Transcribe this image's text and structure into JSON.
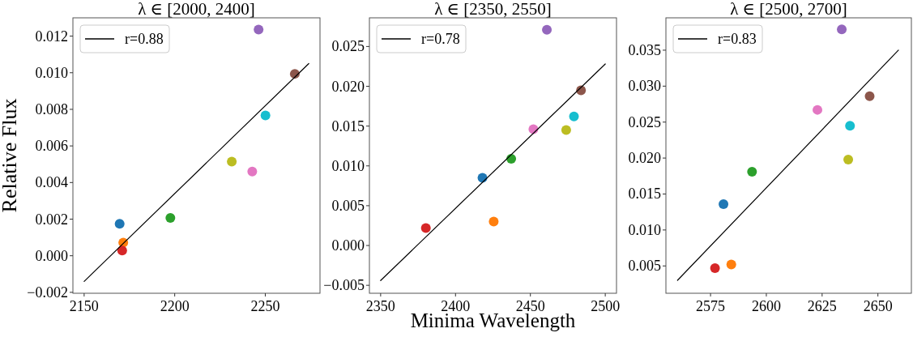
{
  "chart_data": [
    {
      "type": "scatter",
      "title": "λ ∈ [2000, 2400]",
      "ylabel": "Relative Flux",
      "xlim": [
        2143.8,
        2280.2
      ],
      "ylim": [
        -0.00205,
        0.013
      ],
      "xticks": [
        2150,
        2200,
        2250
      ],
      "yticks": [
        {
          "value": -0.002,
          "label": "−0.002"
        },
        {
          "value": 0,
          "label": "0.000"
        },
        {
          "value": 0.002,
          "label": "0.002"
        },
        {
          "value": 0.004,
          "label": "0.004"
        },
        {
          "value": 0.006,
          "label": "0.006"
        },
        {
          "value": 0.008,
          "label": "0.008"
        },
        {
          "value": 0.01,
          "label": "0.010"
        },
        {
          "value": 0.012,
          "label": "0.012"
        }
      ],
      "legend": "top left",
      "series": [
        {
          "marker": "circle",
          "x": [
            2169.6,
            2171.6,
            2197.6,
            2171.0,
            2246.3,
            2266.3,
            2242.8,
            2231.5,
            2250.1
          ],
          "values": [
            0.00175,
            0.00072,
            0.00207,
            0.00029,
            0.01236,
            0.00994,
            0.0046,
            0.00514,
            0.00767
          ],
          "colors": [
            "#1f77b4",
            "#ff7f0e",
            "#2ca02c",
            "#d62728",
            "#9467bd",
            "#8c564b",
            "#e377c2",
            "#bcbd22",
            "#17becf"
          ]
        },
        {
          "type": "line",
          "name": "r=0.88",
          "color": "#000000",
          "x": [
            2150,
            2274
          ],
          "values": [
            -0.0014,
            0.0105
          ]
        }
      ]
    },
    {
      "type": "scatter",
      "title": "λ ∈ [2350, 2550]",
      "xlabel": "Minima Wavelength",
      "xlim": [
        2342.5,
        2507.5
      ],
      "ylim": [
        -0.006,
        0.0286
      ],
      "xticks": [
        2350,
        2400,
        2450,
        2500
      ],
      "yticks": [
        {
          "value": -0.005,
          "label": "−0.005"
        },
        {
          "value": 0,
          "label": "0.000"
        },
        {
          "value": 0.005,
          "label": "0.005"
        },
        {
          "value": 0.01,
          "label": "0.010"
        },
        {
          "value": 0.015,
          "label": "0.015"
        },
        {
          "value": 0.02,
          "label": "0.020"
        },
        {
          "value": 0.025,
          "label": "0.025"
        }
      ],
      "legend": "top left",
      "series": [
        {
          "marker": "circle",
          "x": [
            2418.0,
            2425.5,
            2437.2,
            2380.2,
            2461.0,
            2483.8,
            2452.0,
            2473.9,
            2479.1
          ],
          "values": [
            0.0085,
            0.003,
            0.0109,
            0.0022,
            0.0271,
            0.0195,
            0.0146,
            0.0145,
            0.0162
          ],
          "colors": [
            "#1f77b4",
            "#ff7f0e",
            "#2ca02c",
            "#d62728",
            "#9467bd",
            "#8c564b",
            "#e377c2",
            "#bcbd22",
            "#17becf"
          ]
        },
        {
          "type": "line",
          "name": "r=0.78",
          "color": "#000000",
          "x": [
            2350,
            2500
          ],
          "values": [
            -0.0044,
            0.0228
          ]
        }
      ]
    },
    {
      "type": "scatter",
      "title": "λ ∈ [2500, 2700]",
      "xlim": [
        2555,
        2665
      ],
      "ylim": [
        0.0012,
        0.0395
      ],
      "xticks": [
        2575,
        2600,
        2625,
        2650
      ],
      "yticks": [
        {
          "value": 0.005,
          "label": "0.005"
        },
        {
          "value": 0.01,
          "label": "0.010"
        },
        {
          "value": 0.015,
          "label": "0.015"
        },
        {
          "value": 0.02,
          "label": "0.020"
        },
        {
          "value": 0.025,
          "label": "0.025"
        },
        {
          "value": 0.03,
          "label": "0.030"
        },
        {
          "value": 0.035,
          "label": "0.035"
        }
      ],
      "legend": "top left",
      "series": [
        {
          "marker": "circle",
          "x": [
            2580.8,
            2584.3,
            2593.6,
            2577.0,
            2633.8,
            2646.3,
            2622.9,
            2636.7,
            2637.5
          ],
          "values": [
            0.0136,
            0.0052,
            0.0181,
            0.0047,
            0.0379,
            0.0286,
            0.0267,
            0.0198,
            0.0245
          ],
          "colors": [
            "#1f77b4",
            "#ff7f0e",
            "#2ca02c",
            "#d62728",
            "#9467bd",
            "#8c564b",
            "#e377c2",
            "#bcbd22",
            "#17becf"
          ]
        },
        {
          "type": "line",
          "name": "r=0.83",
          "color": "#000000",
          "x": [
            2560.2,
            2659.2
          ],
          "values": [
            0.003,
            0.035
          ]
        }
      ]
    }
  ]
}
